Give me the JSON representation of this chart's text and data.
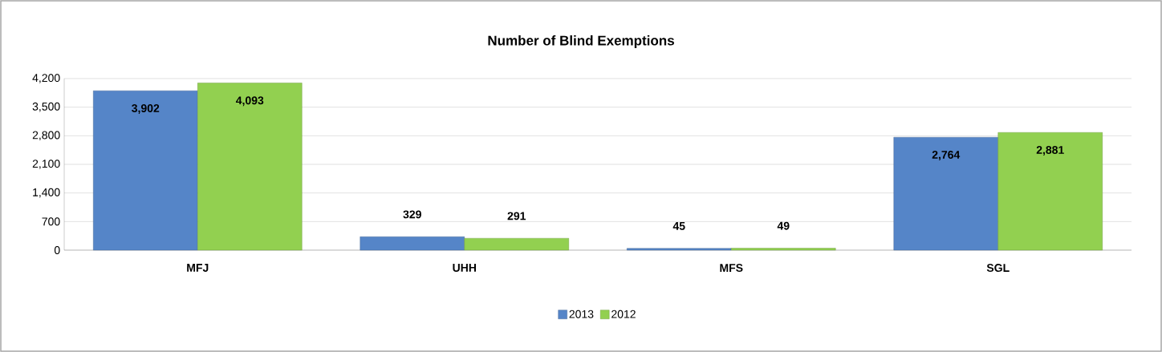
{
  "chart_data": {
    "type": "bar",
    "title": "Number of Blind Exemptions",
    "categories": [
      "MFJ",
      "UHH",
      "MFS",
      "SGL"
    ],
    "series": [
      {
        "name": "2013",
        "color": "#5585c8",
        "values": [
          3902,
          329,
          45,
          2764
        ],
        "value_labels": [
          "3,902",
          "329",
          "45",
          "2,764"
        ]
      },
      {
        "name": "2012",
        "color": "#92d050",
        "values": [
          4093,
          291,
          49,
          2881
        ],
        "value_labels": [
          "4,093",
          "291",
          "49",
          "2,881"
        ]
      }
    ],
    "ylim": [
      0,
      4200
    ],
    "yticks": [
      {
        "value": 0,
        "label": "0"
      },
      {
        "value": 700,
        "label": "700"
      },
      {
        "value": 1400,
        "label": "1,400"
      },
      {
        "value": 2100,
        "label": "2,100"
      },
      {
        "value": 2800,
        "label": "2,800"
      },
      {
        "value": 3500,
        "label": "3,500"
      },
      {
        "value": 4200,
        "label": "4,200"
      }
    ],
    "grid": "y",
    "legend": "bottom"
  }
}
